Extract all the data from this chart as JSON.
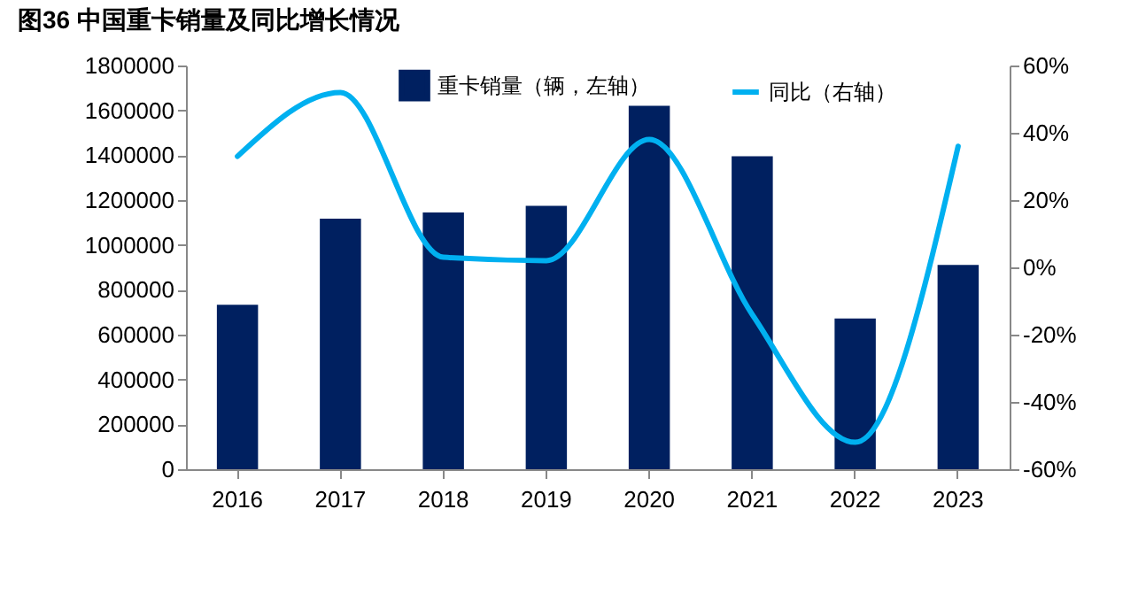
{
  "chart_data": {
    "type": "bar",
    "title": "图36 中国重卡销量及同比增长情况",
    "categories": [
      "2016",
      "2017",
      "2018",
      "2019",
      "2020",
      "2021",
      "2022",
      "2023"
    ],
    "series": [
      {
        "name": "重卡销量（辆，左轴）",
        "color": "#002060",
        "values": [
          733000,
          1117000,
          1145000,
          1174000,
          1620000,
          1395000,
          672000,
          911000
        ]
      },
      {
        "name": "同比（右轴）",
        "type": "line",
        "axis": "y2",
        "color": "#00b0f0",
        "values": [
          33,
          52,
          3,
          2,
          38,
          -14,
          -52,
          36
        ]
      }
    ],
    "ylim": [
      0,
      1800000
    ],
    "yticks": [
      0,
      200000,
      400000,
      600000,
      800000,
      1000000,
      1200000,
      1400000,
      1600000,
      1800000
    ],
    "y2lim": [
      -60,
      60
    ],
    "y2ticks": [
      {
        "value": -60,
        "label": "-60%"
      },
      {
        "value": -40,
        "label": "-40%"
      },
      {
        "value": -20,
        "label": "-20%"
      },
      {
        "value": 0,
        "label": "0%"
      },
      {
        "value": 20,
        "label": "20%"
      },
      {
        "value": 40,
        "label": "40%"
      },
      {
        "value": 60,
        "label": "60%"
      }
    ],
    "grid": false,
    "legend": "top",
    "marker": "none",
    "line_style": "solid"
  }
}
